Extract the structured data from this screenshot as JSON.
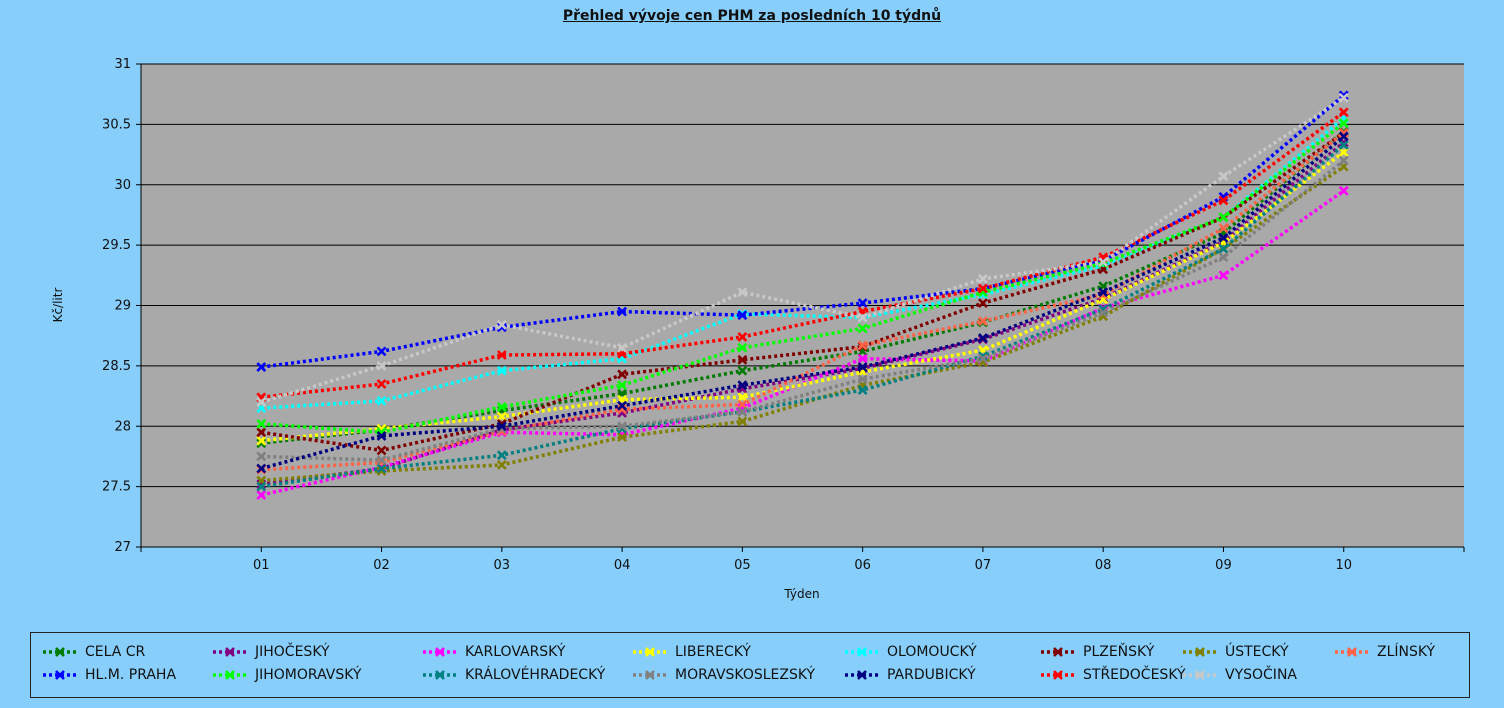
{
  "chart_data": {
    "type": "line",
    "title": "Přehled vývoje cen PHM za posledních 10 týdnů",
    "xlabel": "Týden",
    "ylabel": "Kč/litr",
    "categories": [
      "01",
      "02",
      "03",
      "04",
      "05",
      "06",
      "07",
      "08",
      "09",
      "10"
    ],
    "ylim": [
      27,
      31
    ],
    "yticks": [
      "27",
      "27.5",
      "28",
      "28.5",
      "29",
      "29.5",
      "30",
      "30.5",
      "31"
    ],
    "grid": true,
    "legend_position": "bottom",
    "series": [
      {
        "name": "CELA CR",
        "color": "#007A00",
        "values": [
          27.86,
          27.97,
          28.13,
          28.27,
          28.46,
          28.62,
          28.86,
          29.16,
          29.6,
          30.44
        ]
      },
      {
        "name": "JIHOČESKÝ",
        "color": "#800080",
        "values": [
          27.52,
          27.65,
          27.97,
          28.11,
          28.31,
          28.48,
          28.72,
          29.06,
          29.53,
          30.35
        ]
      },
      {
        "name": "KARLOVARSKÝ",
        "color": "#FF00FF",
        "values": [
          27.43,
          27.66,
          27.95,
          27.93,
          28.15,
          28.56,
          28.54,
          28.98,
          29.25,
          29.95
        ]
      },
      {
        "name": "LIBERECKÝ",
        "color": "#FFFF00",
        "values": [
          27.88,
          27.98,
          28.08,
          28.22,
          28.24,
          28.45,
          28.63,
          29.05,
          29.52,
          30.27
        ]
      },
      {
        "name": "OLOMOUCKÝ",
        "color": "#00FFFF",
        "values": [
          28.15,
          28.21,
          28.46,
          28.56,
          28.93,
          28.9,
          29.09,
          29.33,
          29.73,
          30.55
        ]
      },
      {
        "name": "PLZEŇSKÝ",
        "color": "#800000",
        "values": [
          27.95,
          27.8,
          28.02,
          28.43,
          28.55,
          28.66,
          29.02,
          29.3,
          29.73,
          30.43
        ]
      },
      {
        "name": "ÚSTECKÝ",
        "color": "#808000",
        "values": [
          27.55,
          27.63,
          27.68,
          27.91,
          28.04,
          28.34,
          28.53,
          28.91,
          29.47,
          30.15
        ]
      },
      {
        "name": "ZLÍNSKÝ",
        "color": "#FF6347",
        "values": [
          27.64,
          27.7,
          27.96,
          28.14,
          28.18,
          28.67,
          28.87,
          29.09,
          29.64,
          30.43
        ]
      },
      {
        "name": "HL.M. PRAHA",
        "color": "#0000FF",
        "values": [
          28.49,
          28.62,
          28.82,
          28.95,
          28.92,
          29.02,
          29.14,
          29.37,
          29.9,
          30.74
        ]
      },
      {
        "name": "JIHOMORAVSKÝ",
        "color": "#00FF00",
        "values": [
          28.02,
          27.95,
          28.16,
          28.34,
          28.65,
          28.81,
          29.11,
          29.35,
          29.73,
          30.51
        ]
      },
      {
        "name": "KRÁLOVÉHRADECKÝ",
        "color": "#008080",
        "values": [
          27.5,
          27.65,
          27.76,
          27.98,
          28.12,
          28.3,
          28.58,
          28.97,
          29.47,
          30.33
        ]
      },
      {
        "name": "MORAVSKOSLEZSKÝ",
        "color": "#808080",
        "values": [
          27.75,
          27.72,
          27.98,
          28.0,
          28.12,
          28.39,
          28.56,
          28.94,
          29.4,
          30.2
        ]
      },
      {
        "name": "PARDUBICKÝ",
        "color": "#000080",
        "values": [
          27.65,
          27.92,
          28.0,
          28.17,
          28.34,
          28.49,
          28.73,
          29.11,
          29.56,
          30.4
        ]
      },
      {
        "name": "STŘEDOČESKÝ",
        "color": "#FF0000",
        "values": [
          28.24,
          28.35,
          28.59,
          28.6,
          28.74,
          28.95,
          29.14,
          29.4,
          29.87,
          30.6
        ]
      },
      {
        "name": "VYSOČINA",
        "color": "#C8C8C8",
        "values": [
          28.2,
          28.5,
          28.84,
          28.65,
          29.11,
          28.9,
          29.22,
          29.36,
          30.07,
          30.72
        ]
      }
    ]
  }
}
